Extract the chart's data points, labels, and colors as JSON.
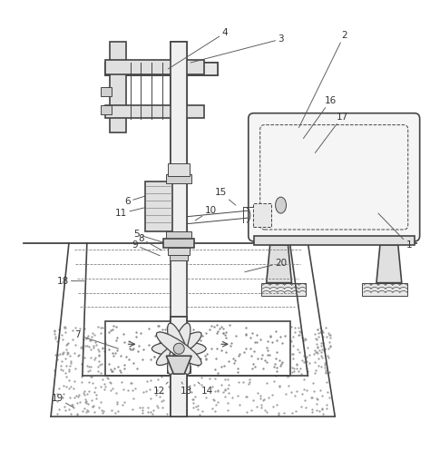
{
  "background_color": "#ffffff",
  "line_color": "#444444",
  "label_color": "#333333",
  "figure_width": 4.74,
  "figure_height": 4.97,
  "dpi": 100
}
